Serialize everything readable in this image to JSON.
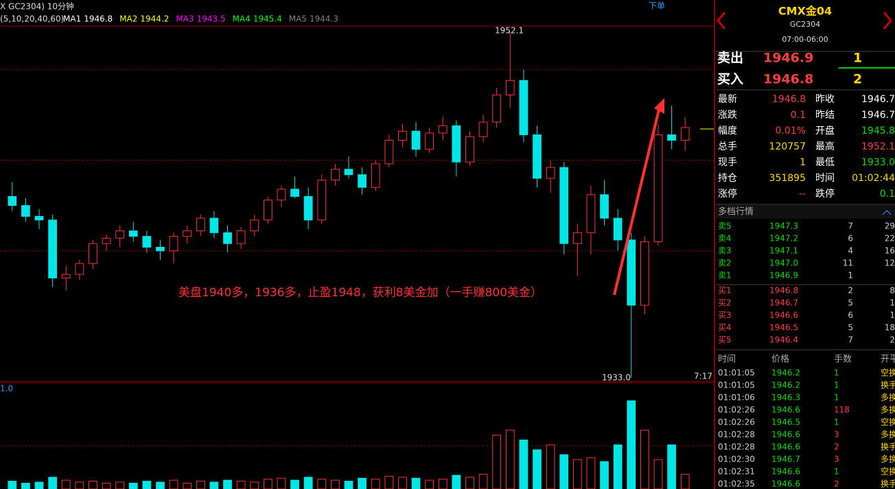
{
  "chart_data": {
    "type": "candlestick",
    "header": "X GC2304) 10分钟",
    "order_button": "下单",
    "ma_params": "(5,10,20,40,60)",
    "ma_legend": [
      {
        "name": "MA1",
        "value": "1946.8",
        "color": "#ffffff"
      },
      {
        "name": "MA2",
        "value": "1944.2",
        "color": "#ffff00"
      },
      {
        "name": "MA3",
        "value": "1943.5",
        "color": "#ff00ff"
      },
      {
        "name": "MA4",
        "value": "1945.4",
        "color": "#00ff00"
      },
      {
        "name": "MA5",
        "value": "1944.3",
        "color": "#808080"
      }
    ],
    "high_label": "1952.1",
    "low_label": "1933.0",
    "time_label": "7:17",
    "annotation": "美盘1940多，1936多，止盈1948，获利8美金加（一手赚800美金）",
    "volume_label": "1.0",
    "up_color": "#ff3232",
    "down_color": "#00e5e5",
    "ylim": [
      1932.8,
      1952.4
    ],
    "yticks": [
      1940,
      1945,
      1950
    ],
    "volume_ylim": [
      0,
      100
    ],
    "candles": [
      [
        1943.0,
        1943.8,
        1942.2,
        1942.5
      ],
      [
        1942.5,
        1942.9,
        1941.6,
        1941.9
      ],
      [
        1941.9,
        1942.3,
        1941.2,
        1941.7
      ],
      [
        1941.7,
        1942.0,
        1938.0,
        1938.5
      ],
      [
        1938.5,
        1939.2,
        1937.8,
        1938.7
      ],
      [
        1938.7,
        1939.5,
        1938.4,
        1939.3
      ],
      [
        1939.3,
        1940.6,
        1939.0,
        1940.4
      ],
      [
        1940.4,
        1940.9,
        1940.0,
        1940.7
      ],
      [
        1940.7,
        1941.4,
        1940.2,
        1941.1
      ],
      [
        1941.1,
        1941.6,
        1940.5,
        1940.8
      ],
      [
        1940.8,
        1941.1,
        1939.9,
        1940.2
      ],
      [
        1940.2,
        1940.6,
        1939.5,
        1940.0
      ],
      [
        1940.0,
        1941.0,
        1939.3,
        1940.8
      ],
      [
        1940.8,
        1941.4,
        1940.4,
        1941.1
      ],
      [
        1941.1,
        1942.0,
        1940.8,
        1941.8
      ],
      [
        1941.8,
        1942.2,
        1940.7,
        1941.0
      ],
      [
        1941.0,
        1941.4,
        1939.9,
        1940.4
      ],
      [
        1940.4,
        1941.3,
        1940.1,
        1941.1
      ],
      [
        1941.1,
        1942.0,
        1940.8,
        1941.7
      ],
      [
        1941.7,
        1943.0,
        1941.5,
        1942.8
      ],
      [
        1942.8,
        1943.6,
        1942.4,
        1943.4
      ],
      [
        1943.4,
        1944.1,
        1942.9,
        1943.0
      ],
      [
        1943.0,
        1943.5,
        1941.2,
        1941.7
      ],
      [
        1941.7,
        1944.2,
        1941.5,
        1943.9
      ],
      [
        1943.9,
        1944.8,
        1943.6,
        1944.5
      ],
      [
        1944.5,
        1945.2,
        1944.0,
        1944.2
      ],
      [
        1944.2,
        1944.6,
        1943.1,
        1943.5
      ],
      [
        1943.5,
        1945.0,
        1943.3,
        1944.8
      ],
      [
        1944.8,
        1946.4,
        1944.6,
        1946.1
      ],
      [
        1946.1,
        1947.0,
        1945.7,
        1946.6
      ],
      [
        1946.6,
        1947.1,
        1945.2,
        1945.6
      ],
      [
        1945.6,
        1946.8,
        1945.4,
        1946.5
      ],
      [
        1946.5,
        1947.4,
        1946.1,
        1946.9
      ],
      [
        1946.9,
        1947.2,
        1944.1,
        1944.9
      ],
      [
        1944.9,
        1946.6,
        1944.7,
        1946.3
      ],
      [
        1946.3,
        1947.5,
        1946.0,
        1947.1
      ],
      [
        1947.1,
        1949.0,
        1946.8,
        1948.6
      ],
      [
        1948.6,
        1952.1,
        1947.9,
        1949.4
      ],
      [
        1949.4,
        1950.0,
        1946.0,
        1946.4
      ],
      [
        1946.4,
        1946.9,
        1943.5,
        1944.0
      ],
      [
        1944.0,
        1945.0,
        1943.2,
        1944.6
      ],
      [
        1944.6,
        1944.9,
        1939.8,
        1940.4
      ],
      [
        1940.4,
        1941.5,
        1938.6,
        1941.0
      ],
      [
        1941.0,
        1943.6,
        1939.8,
        1943.1
      ],
      [
        1943.1,
        1943.9,
        1941.4,
        1941.8
      ],
      [
        1941.8,
        1942.3,
        1940.0,
        1940.6
      ],
      [
        1940.6,
        1941.0,
        1933.0,
        1937.0
      ],
      [
        1937.0,
        1940.8,
        1936.5,
        1940.5
      ],
      [
        1940.5,
        1947.0,
        1940.3,
        1946.4
      ],
      [
        1946.4,
        1948.0,
        1945.6,
        1946.1
      ],
      [
        1946.1,
        1947.4,
        1945.5,
        1946.8
      ]
    ],
    "volume": [
      8,
      6,
      7,
      12,
      9,
      7,
      8,
      6,
      7,
      6,
      8,
      7,
      9,
      6,
      8,
      7,
      9,
      8,
      7,
      10,
      11,
      9,
      12,
      10,
      9,
      8,
      11,
      10,
      13,
      12,
      11,
      9,
      10,
      14,
      12,
      15,
      55,
      60,
      50,
      40,
      45,
      35,
      30,
      32,
      28,
      45,
      90,
      60,
      30,
      45,
      15
    ]
  },
  "panel": {
    "title": "CMX金04",
    "code": "GC2304",
    "hours": "07:00-06:00",
    "ask": [
      "卖出",
      "1946.9",
      "1"
    ],
    "bid": [
      "买入",
      "1946.8",
      "2"
    ],
    "stats": [
      [
        "最新",
        "1946.8",
        "昨收",
        "1946.7"
      ],
      [
        "涨跌",
        "0.1",
        "昨结",
        "1946.7"
      ],
      [
        "幅度",
        "0.01%",
        "开盘",
        "1945.8"
      ],
      [
        "总手",
        "120757",
        "最高",
        "1952.1"
      ],
      [
        "现手",
        "1",
        "最低",
        "1933.0"
      ],
      [
        "持仓",
        "351895",
        "时间",
        "01:02:44"
      ],
      [
        "涨停",
        "--",
        "跌停",
        "0.1"
      ]
    ],
    "depth_title": "多档行情",
    "asks": [
      [
        "卖5",
        "1947.3",
        "7",
        "29"
      ],
      [
        "卖4",
        "1947.2",
        "6",
        "22"
      ],
      [
        "卖3",
        "1947.1",
        "4",
        "16"
      ],
      [
        "卖2",
        "1947.0",
        "11",
        "12"
      ],
      [
        "卖1",
        "1946.9",
        "1"
      ]
    ],
    "bids": [
      [
        "买1",
        "1946.8",
        "2",
        "8"
      ],
      [
        "买2",
        "1946.7",
        "5",
        "1"
      ],
      [
        "买3",
        "1946.6",
        "6",
        "1"
      ],
      [
        "买4",
        "1946.5",
        "5",
        "18"
      ],
      [
        "买5",
        "1946.4",
        "7",
        "2"
      ]
    ],
    "trade_header": [
      "时间",
      "价格",
      "手数",
      "开平"
    ],
    "trades": [
      [
        "01:01:05",
        "1946.2",
        "1",
        "空换"
      ],
      [
        "01:01:05",
        "1946.2",
        "1",
        "换手"
      ],
      [
        "01:01:06",
        "1946.3",
        "1",
        "多换"
      ],
      [
        "01:02:26",
        "1946.6",
        "118",
        "多换"
      ],
      [
        "01:02:26",
        "1946.5",
        "1",
        "空换"
      ],
      [
        "01:02:28",
        "1946.6",
        "3",
        "多换"
      ],
      [
        "01:02:28",
        "1946.6",
        "2",
        "换手"
      ],
      [
        "01:02:30",
        "1946.7",
        "3",
        "多换"
      ],
      [
        "01:02:31",
        "1946.6",
        "1",
        "空换"
      ],
      [
        "01:02:35",
        "1946.6",
        "2",
        "换手"
      ]
    ]
  }
}
